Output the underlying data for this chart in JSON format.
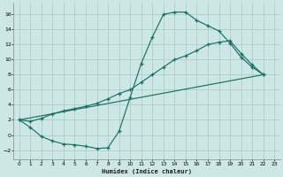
{
  "xlabel": "Humidex (Indice chaleur)",
  "bg_color": "#cde8e4",
  "grid_color": "#aaceca",
  "line_color": "#1a7060",
  "xlim": [
    -0.5,
    23.5
  ],
  "ylim": [
    -3.2,
    17.5
  ],
  "yticks": [
    -2,
    0,
    2,
    4,
    6,
    8,
    10,
    12,
    14,
    16
  ],
  "xticks": [
    0,
    1,
    2,
    3,
    4,
    5,
    6,
    7,
    8,
    9,
    10,
    11,
    12,
    13,
    14,
    15,
    16,
    17,
    18,
    19,
    20,
    21,
    22,
    23
  ],
  "line1_x": [
    0,
    1,
    2,
    3,
    4,
    5,
    6,
    7,
    8,
    9,
    10,
    11,
    12,
    13,
    14,
    15,
    16,
    17,
    18,
    19,
    20,
    21,
    22
  ],
  "line1_y": [
    2.0,
    1.0,
    -0.2,
    -0.8,
    -1.2,
    -1.3,
    -1.5,
    -1.8,
    -1.7,
    0.5,
    5.0,
    9.5,
    13.0,
    16.0,
    16.3,
    16.3,
    15.2,
    14.5,
    13.8,
    12.2,
    10.3,
    9.0,
    8.0
  ],
  "line2_x": [
    0,
    22
  ],
  "line2_y": [
    2.0,
    8.0
  ],
  "line3_x": [
    0,
    1,
    2,
    3,
    4,
    5,
    6,
    7,
    8,
    9,
    10,
    11,
    12,
    13,
    14,
    15,
    16,
    17,
    18,
    19,
    20,
    21,
    22
  ],
  "line3_y": [
    2.0,
    1.8,
    2.2,
    2.8,
    3.2,
    3.5,
    3.8,
    4.2,
    4.8,
    5.5,
    6.0,
    7.0,
    8.0,
    9.0,
    10.0,
    10.5,
    11.2,
    12.0,
    12.3,
    12.5,
    10.8,
    9.3,
    8.0
  ]
}
